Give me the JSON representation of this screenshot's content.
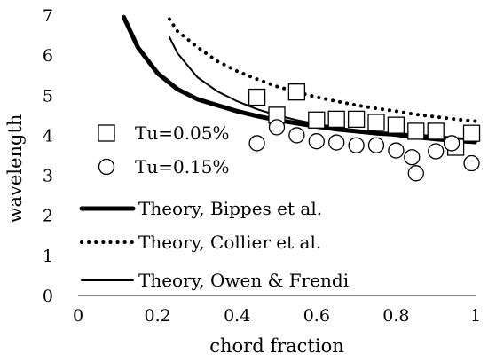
{
  "chart_data": {
    "type": "scatter",
    "xlabel": "chord fraction",
    "ylabel": "wavelength",
    "xlim": [
      0,
      1
    ],
    "ylim": [
      0,
      7
    ],
    "xticks": [
      "0",
      "0.2",
      "0.4",
      "0.6",
      "0.8",
      "1"
    ],
    "yticks": [
      "0",
      "1",
      "2",
      "3",
      "4",
      "5",
      "6",
      "7"
    ],
    "grid": false,
    "legend_position": "inside-left",
    "series": [
      {
        "name": "Tu=0.05%",
        "kind": "scatter",
        "marker": "square",
        "x": [
          0.45,
          0.5,
          0.55,
          0.6,
          0.65,
          0.7,
          0.75,
          0.8,
          0.85,
          0.9,
          0.95,
          0.99
        ],
        "y": [
          4.95,
          4.5,
          5.08,
          4.38,
          4.4,
          4.4,
          4.32,
          4.25,
          4.1,
          4.1,
          3.7,
          4.05
        ]
      },
      {
        "name": "Tu=0.15%",
        "kind": "scatter",
        "marker": "circle",
        "x": [
          0.45,
          0.5,
          0.55,
          0.6,
          0.65,
          0.7,
          0.75,
          0.8,
          0.84,
          0.85,
          0.9,
          0.94,
          0.99
        ],
        "y": [
          3.8,
          4.2,
          4.0,
          3.85,
          3.82,
          3.75,
          3.75,
          3.62,
          3.45,
          3.05,
          3.6,
          3.8,
          3.3
        ]
      },
      {
        "name": "Theory, Bippes et al.",
        "kind": "line",
        "style": "thick",
        "x": [
          0.115,
          0.15,
          0.2,
          0.25,
          0.3,
          0.35,
          0.4,
          0.45,
          0.5,
          0.55,
          0.6,
          0.65,
          0.7,
          0.75,
          0.8,
          0.85,
          0.9,
          0.95,
          1.0
        ],
        "y": [
          6.95,
          6.2,
          5.55,
          5.15,
          4.9,
          4.75,
          4.6,
          4.48,
          4.38,
          4.3,
          4.22,
          4.15,
          4.1,
          4.05,
          4.02,
          3.98,
          3.95,
          3.9,
          3.86
        ]
      },
      {
        "name": "Theory, Collier et al.",
        "kind": "line",
        "style": "dotted",
        "x": [
          0.23,
          0.25,
          0.3,
          0.35,
          0.4,
          0.45,
          0.5,
          0.55,
          0.6,
          0.65,
          0.7,
          0.75,
          0.8,
          0.85,
          0.9,
          0.95,
          1.0
        ],
        "y": [
          6.9,
          6.6,
          6.2,
          5.85,
          5.6,
          5.4,
          5.22,
          5.08,
          4.95,
          4.85,
          4.75,
          4.67,
          4.6,
          4.52,
          4.46,
          4.4,
          4.35
        ]
      },
      {
        "name": "Theory, Owen & Frendi",
        "kind": "line",
        "style": "thin",
        "x": [
          0.23,
          0.25,
          0.3,
          0.35,
          0.4,
          0.45,
          0.5,
          0.55,
          0.6,
          0.65,
          0.7,
          0.75,
          0.8,
          0.85,
          0.9,
          0.95,
          1.0
        ],
        "y": [
          6.45,
          6.05,
          5.45,
          5.1,
          4.85,
          4.65,
          4.5,
          4.38,
          4.28,
          4.2,
          4.12,
          4.05,
          3.98,
          3.92,
          3.87,
          3.83,
          3.8
        ]
      }
    ],
    "colors": {
      "ink": "#000000",
      "background": "#ffffff"
    }
  }
}
